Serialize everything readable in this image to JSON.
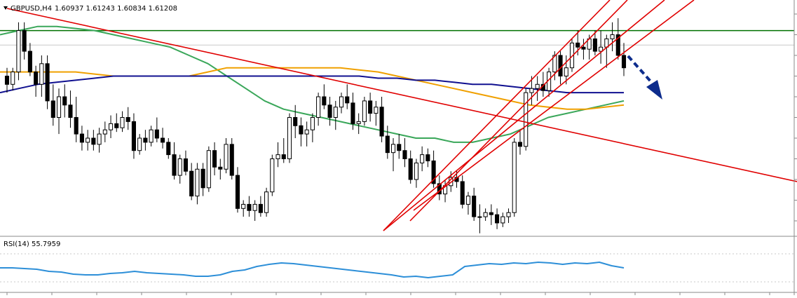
{
  "chart_header": {
    "symbol_label": "GBPUSD,H4",
    "ohlc_text": "1.60937 1.61243 1.60834 1.61208"
  },
  "rsi_header": {
    "label": "RSI(14) 55.7959"
  },
  "colors": {
    "background": "#ffffff",
    "bull_body": "#ffffff",
    "bear_body": "#000000",
    "candle_outline": "#000000",
    "trendline_red": "#e00000",
    "horizontal_level_green": "#007000",
    "sma_green": "#3aa75a",
    "ma_orange": "#f0a000",
    "ma_navy": "#101090",
    "rsi_line": "#2d8fd8",
    "arrow": "#0d2c8c",
    "gridline": "#c8c8c8",
    "separator": "#8a8a8a"
  },
  "chart_data": {
    "type": "candlestick",
    "symbol": "GBPUSD",
    "timeframe": "H4",
    "last_bar": {
      "open": 1.60937,
      "high": 1.61243,
      "low": 1.60834,
      "close": 1.61208
    },
    "note_units": "values in approximate price-position units read from the chart (0 = pane bottom, 100 = pane top)",
    "candles": [
      [
        70,
        74,
        62,
        66
      ],
      [
        66,
        74,
        63,
        72
      ],
      [
        72,
        96,
        68,
        92
      ],
      [
        92,
        96,
        78,
        82
      ],
      [
        82,
        86,
        70,
        72
      ],
      [
        72,
        75,
        60,
        66
      ],
      [
        66,
        80,
        60,
        76
      ],
      [
        76,
        80,
        54,
        58
      ],
      [
        58,
        66,
        46,
        50
      ],
      [
        50,
        64,
        42,
        60
      ],
      [
        60,
        66,
        50,
        56
      ],
      [
        56,
        63,
        45,
        50
      ],
      [
        50,
        60,
        38,
        42
      ],
      [
        42,
        46,
        34,
        38
      ],
      [
        38,
        44,
        34,
        40
      ],
      [
        40,
        44,
        34,
        37
      ],
      [
        37,
        45,
        33,
        42
      ],
      [
        42,
        48,
        38,
        44
      ],
      [
        44,
        51,
        40,
        47
      ],
      [
        47,
        52,
        43,
        45
      ],
      [
        45,
        53,
        43,
        50
      ],
      [
        50,
        55,
        44,
        48
      ],
      [
        48,
        52,
        30,
        34
      ],
      [
        34,
        42,
        32,
        40
      ],
      [
        40,
        44,
        34,
        38
      ],
      [
        38,
        46,
        36,
        44
      ],
      [
        44,
        50,
        38,
        40
      ],
      [
        40,
        45,
        35,
        38
      ],
      [
        38,
        40,
        30,
        32
      ],
      [
        32,
        38,
        20,
        22
      ],
      [
        22,
        32,
        18,
        30
      ],
      [
        30,
        34,
        22,
        24
      ],
      [
        24,
        28,
        10,
        12
      ],
      [
        12,
        28,
        8,
        25
      ],
      [
        25,
        28,
        12,
        16
      ],
      [
        16,
        36,
        14,
        34
      ],
      [
        34,
        38,
        22,
        26
      ],
      [
        26,
        30,
        20,
        25
      ],
      [
        25,
        40,
        23,
        37
      ],
      [
        37,
        40,
        20,
        22
      ],
      [
        22,
        26,
        4,
        6
      ],
      [
        6,
        10,
        2,
        8
      ],
      [
        8,
        12,
        2,
        5
      ],
      [
        5,
        10,
        0,
        8
      ],
      [
        8,
        12,
        2,
        4
      ],
      [
        4,
        16,
        2,
        14
      ],
      [
        14,
        32,
        12,
        30
      ],
      [
        30,
        38,
        26,
        32
      ],
      [
        32,
        40,
        28,
        30
      ],
      [
        30,
        52,
        28,
        50
      ],
      [
        50,
        56,
        40,
        46
      ],
      [
        46,
        50,
        36,
        42
      ],
      [
        42,
        48,
        36,
        44
      ],
      [
        44,
        52,
        38,
        50
      ],
      [
        50,
        62,
        46,
        60
      ],
      [
        60,
        66,
        54,
        56
      ],
      [
        56,
        60,
        46,
        50
      ],
      [
        50,
        58,
        44,
        55
      ],
      [
        55,
        62,
        52,
        60
      ],
      [
        60,
        66,
        54,
        57
      ],
      [
        57,
        62,
        44,
        47
      ],
      [
        47,
        52,
        42,
        48
      ],
      [
        48,
        60,
        46,
        58
      ],
      [
        58,
        62,
        48,
        52
      ],
      [
        52,
        58,
        46,
        55
      ],
      [
        55,
        60,
        38,
        41
      ],
      [
        41,
        46,
        30,
        33
      ],
      [
        33,
        40,
        24,
        37
      ],
      [
        37,
        42,
        30,
        34
      ],
      [
        34,
        40,
        26,
        30
      ],
      [
        30,
        34,
        18,
        20
      ],
      [
        20,
        30,
        16,
        28
      ],
      [
        28,
        36,
        24,
        32
      ],
      [
        32,
        35,
        26,
        29
      ],
      [
        29,
        34,
        16,
        18
      ],
      [
        18,
        22,
        10,
        13
      ],
      [
        13,
        20,
        9,
        17
      ],
      [
        17,
        24,
        14,
        21
      ],
      [
        21,
        24,
        16,
        19
      ],
      [
        19,
        22,
        6,
        8
      ],
      [
        8,
        14,
        3,
        12
      ],
      [
        12,
        16,
        0,
        2
      ],
      [
        2,
        8,
        -6,
        2
      ],
      [
        2,
        6,
        0,
        4
      ],
      [
        4,
        8,
        -2,
        3
      ],
      [
        3,
        6,
        -4,
        -1
      ],
      [
        -1,
        4,
        -3,
        2
      ],
      [
        2,
        6,
        -1,
        4
      ],
      [
        4,
        40,
        2,
        38
      ],
      [
        38,
        44,
        32,
        36
      ],
      [
        36,
        64,
        34,
        62
      ],
      [
        62,
        70,
        56,
        64
      ],
      [
        64,
        70,
        58,
        66
      ],
      [
        66,
        72,
        60,
        63
      ],
      [
        63,
        74,
        60,
        72
      ],
      [
        72,
        82,
        68,
        80
      ],
      [
        80,
        82,
        66,
        70
      ],
      [
        70,
        80,
        66,
        74
      ],
      [
        74,
        88,
        72,
        86
      ],
      [
        86,
        92,
        80,
        84
      ],
      [
        84,
        88,
        78,
        83
      ],
      [
        83,
        90,
        78,
        88
      ],
      [
        88,
        92,
        80,
        82
      ],
      [
        82,
        92,
        76,
        84
      ],
      [
        84,
        90,
        74,
        88
      ],
      [
        88,
        96,
        82,
        90
      ],
      [
        90,
        98,
        78,
        80
      ],
      [
        80,
        86,
        70,
        74
      ]
    ],
    "overlays": {
      "horizontal_level": 92,
      "sma_green": [
        90,
        92,
        94,
        94,
        93,
        92,
        90,
        88,
        86,
        84,
        80,
        76,
        70,
        64,
        58,
        54,
        52,
        50,
        48,
        46,
        44,
        42,
        40,
        40,
        38,
        38,
        40,
        42,
        46,
        50,
        52,
        54,
        56,
        58
      ],
      "ma_navy": [
        62,
        64,
        66,
        67,
        68,
        69,
        70,
        70,
        70,
        70,
        70,
        70,
        70,
        70,
        70,
        70,
        70,
        70,
        70,
        70,
        69,
        69,
        68,
        68,
        67,
        66,
        66,
        65,
        64,
        63,
        62,
        62,
        62,
        62
      ],
      "ma_orange": [
        72,
        72,
        72,
        72,
        72,
        71,
        70,
        70,
        70,
        70,
        70,
        72,
        74,
        74,
        74,
        74,
        74,
        74,
        74,
        73,
        72,
        70,
        68,
        66,
        64,
        62,
        60,
        58,
        56,
        55,
        54,
        54,
        55,
        56
      ]
    },
    "rsi": {
      "period": 14,
      "current": 55.7959,
      "values": [
        50,
        50,
        49,
        48,
        45,
        44,
        41,
        40,
        40,
        42,
        43,
        45,
        43,
        42,
        41,
        40,
        38,
        38,
        40,
        45,
        47,
        52,
        55,
        57,
        56,
        54,
        52,
        50,
        48,
        46,
        44,
        42,
        40,
        37,
        38,
        36,
        38,
        40,
        52,
        54,
        56,
        55,
        57,
        56,
        58,
        57,
        55,
        57,
        56,
        58,
        53,
        50
      ]
    }
  }
}
